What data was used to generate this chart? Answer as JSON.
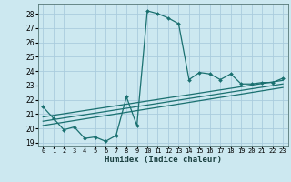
{
  "xlabel": "Humidex (Indice chaleur)",
  "bg_color": "#cce8f0",
  "grid_color": "#aaccdd",
  "line_color": "#1a7070",
  "xlim": [
    -0.5,
    23.5
  ],
  "ylim": [
    18.8,
    28.7
  ],
  "yticks": [
    19,
    20,
    21,
    22,
    23,
    24,
    25,
    26,
    27,
    28
  ],
  "xticks": [
    0,
    1,
    2,
    3,
    4,
    5,
    6,
    7,
    8,
    9,
    10,
    11,
    12,
    13,
    14,
    15,
    16,
    17,
    18,
    19,
    20,
    21,
    22,
    23
  ],
  "main_x": [
    0,
    1,
    2,
    3,
    4,
    5,
    6,
    7,
    8,
    9,
    10,
    11,
    12,
    13,
    14,
    15,
    16,
    17,
    18,
    19,
    20,
    21,
    22,
    23
  ],
  "main_y": [
    21.5,
    20.7,
    19.9,
    20.1,
    19.3,
    19.4,
    19.1,
    19.5,
    22.2,
    20.2,
    28.2,
    28.0,
    27.7,
    27.3,
    23.4,
    23.9,
    23.8,
    23.4,
    23.8,
    23.1,
    23.1,
    23.2,
    23.2,
    23.5
  ],
  "line1_x": [
    0,
    23
  ],
  "line1_y": [
    20.8,
    23.35
  ],
  "line2_x": [
    0,
    23
  ],
  "line2_y": [
    20.5,
    23.1
  ],
  "line3_x": [
    0,
    23
  ],
  "line3_y": [
    20.2,
    22.85
  ]
}
